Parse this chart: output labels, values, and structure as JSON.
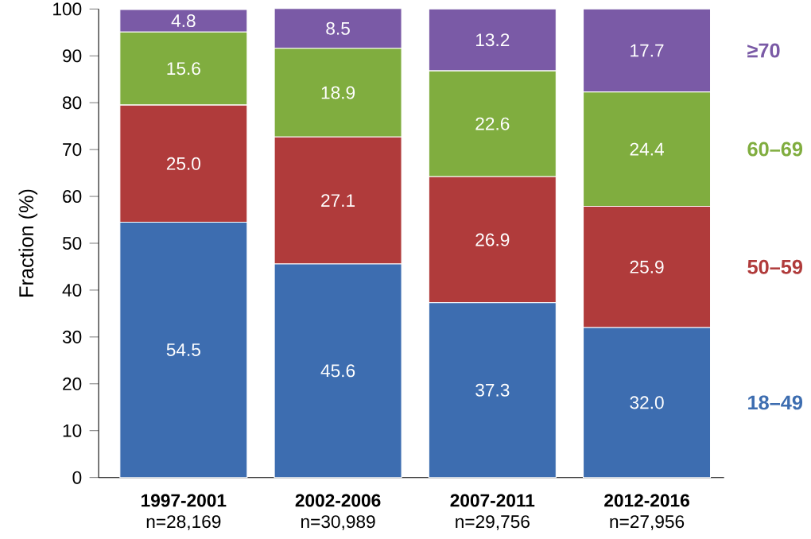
{
  "chart_data": {
    "type": "bar",
    "stacked": true,
    "ylabel": "Fraction (%)",
    "categories": [
      "**1997-2001** n=28,169",
      "**2002-2006** n=30,989",
      "**2007-2011** n=29,756",
      "**2012-2016** n=27,956"
    ],
    "series": [
      {
        "name": "18–49",
        "color": "#3d6db0",
        "values": [
          54.5,
          45.6,
          37.3,
          32.0
        ],
        "value_labels": [
          "54.5",
          "45.6",
          "37.3",
          "32.0"
        ]
      },
      {
        "name": "50–59",
        "color": "#b03b3b",
        "values": [
          25.0,
          27.1,
          26.9,
          25.9
        ],
        "value_labels": [
          "25.0",
          "27.1",
          "26.9",
          "25.9"
        ]
      },
      {
        "name": "60–69",
        "color": "#80ad3f",
        "values": [
          15.6,
          18.9,
          22.6,
          24.4
        ],
        "value_labels": [
          "15.6",
          "18.9",
          "22.6",
          "24.4"
        ]
      },
      {
        "name": "≥70",
        "color": "#7a5aa6",
        "values": [
          4.8,
          8.5,
          13.2,
          17.7
        ],
        "value_labels": [
          "4.8",
          "8.5",
          "13.2",
          "17.7"
        ]
      }
    ],
    "ylim": [
      0,
      100
    ],
    "yticks": [
      0,
      10,
      20,
      30,
      40,
      50,
      60,
      70,
      80,
      90,
      100
    ],
    "legend": false,
    "grid": false
  }
}
